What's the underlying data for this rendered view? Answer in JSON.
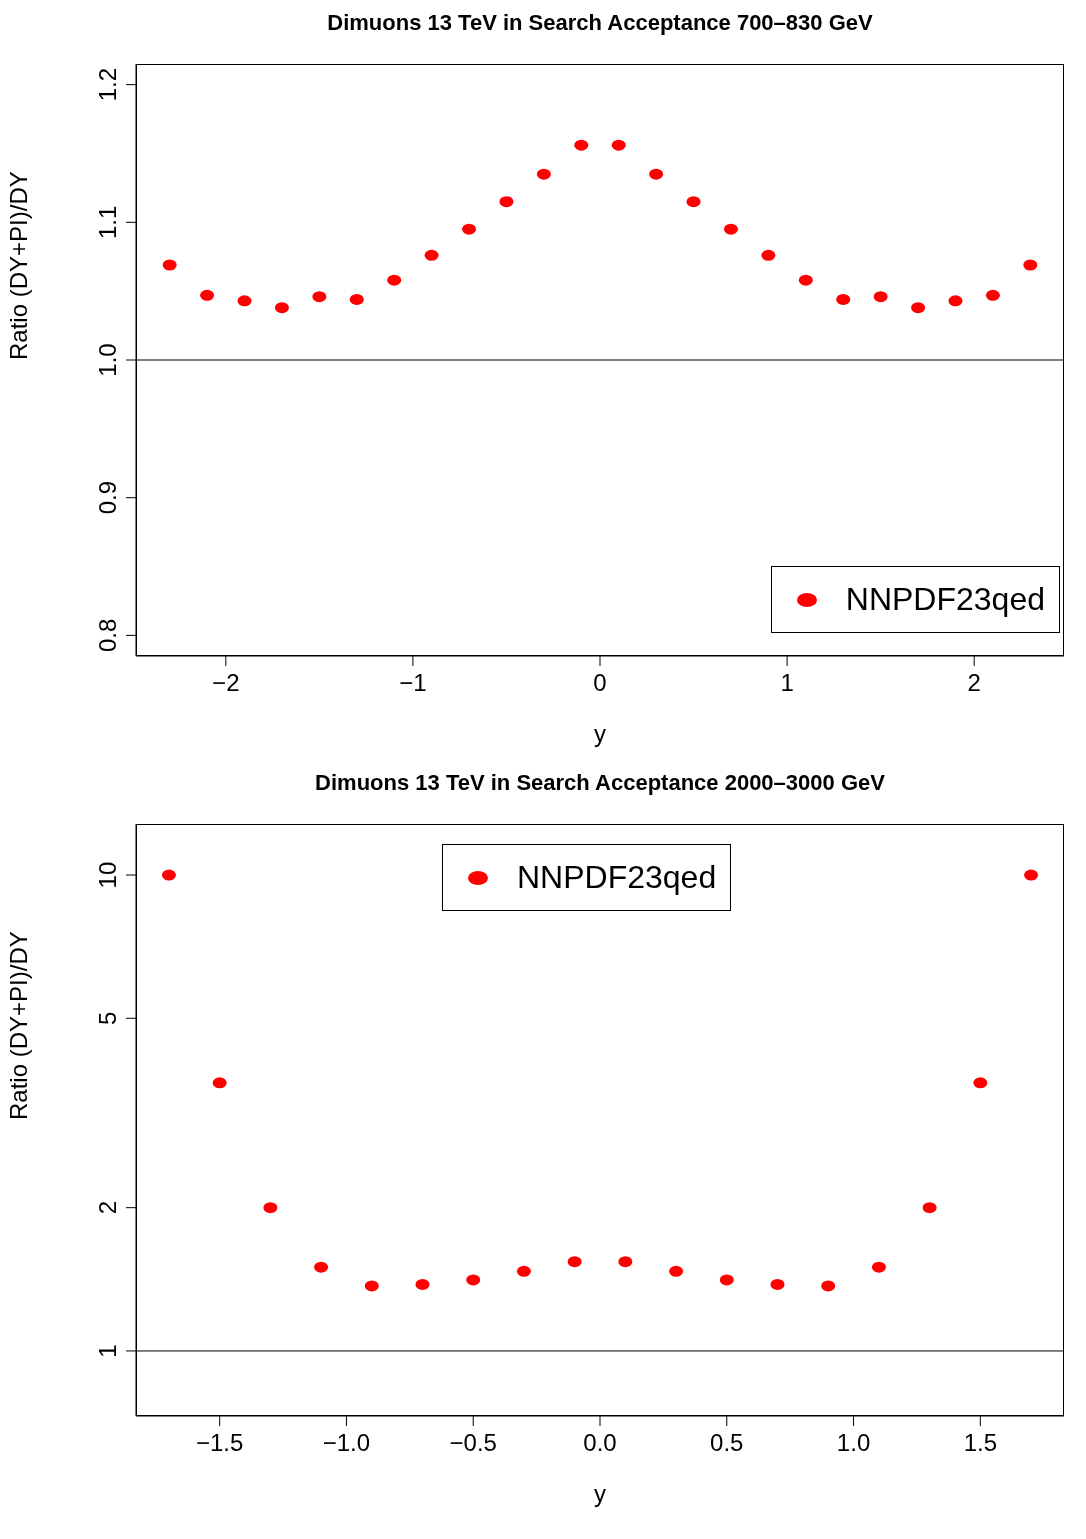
{
  "chart_data": [
    {
      "type": "scatter",
      "title": "Dimuons 13 TeV in Search Acceptance 700–830 GeV",
      "xlabel": "y",
      "ylabel": "Ratio (DY+PI)/DY",
      "x": [
        -2.3,
        -2.1,
        -1.9,
        -1.7,
        -1.5,
        -1.3,
        -1.1,
        -0.9,
        -0.7,
        -0.5,
        -0.3,
        -0.1,
        0.1,
        0.3,
        0.5,
        0.7,
        0.9,
        1.1,
        1.3,
        1.5,
        1.7,
        1.9,
        2.1,
        2.3
      ],
      "series": [
        {
          "name": "NNPDF23qed",
          "color": "#ff0000",
          "values": [
            1.069,
            1.047,
            1.043,
            1.038,
            1.046,
            1.044,
            1.058,
            1.076,
            1.095,
            1.115,
            1.135,
            1.156,
            1.156,
            1.135,
            1.115,
            1.095,
            1.076,
            1.058,
            1.044,
            1.046,
            1.038,
            1.043,
            1.047,
            1.069
          ]
        }
      ],
      "xlim": [
        -2.48,
        2.48
      ],
      "xticks": [
        -2,
        -1,
        0,
        1,
        2
      ],
      "ylim": [
        0.785,
        1.215
      ],
      "yticks": [
        {
          "value": 0.8,
          "label": "0.8"
        },
        {
          "value": 0.9,
          "label": "0.9"
        },
        {
          "value": 1,
          "label": "1.0"
        },
        {
          "value": 1.1,
          "label": "1.1"
        },
        {
          "value": 1.2,
          "label": "1.2"
        }
      ],
      "ref_lines": [
        {
          "axis": "y",
          "value": 1,
          "color": "#000000"
        }
      ],
      "marker": "circle",
      "legend": "bottom right",
      "grid": false
    },
    {
      "type": "scatter",
      "title": "Dimuons 13 TeV in Search Acceptance 2000–3000 GeV",
      "xlabel": "y",
      "ylabel": "Ratio (DY+PI)/DY",
      "x": [
        -1.7,
        -1.5,
        -1.3,
        -1.1,
        -0.9,
        -0.7,
        -0.5,
        -0.3,
        -0.1,
        0.1,
        0.3,
        0.5,
        0.7,
        0.9,
        1.1,
        1.3,
        1.5,
        1.7
      ],
      "series": [
        {
          "name": "NNPDF23qed",
          "color": "#ff0000",
          "values": [
            10,
            3.66,
            2,
            1.5,
            1.37,
            1.38,
            1.41,
            1.47,
            1.54,
            1.54,
            1.47,
            1.41,
            1.38,
            1.37,
            1.5,
            2,
            3.66,
            10
          ]
        }
      ],
      "xlim": [
        -1.83,
        1.83
      ],
      "xticks": [
        {
          "value": -1.5,
          "label": "−1.5"
        },
        {
          "value": -1,
          "label": "−1.0"
        },
        {
          "value": -0.5,
          "label": "−0.5"
        },
        {
          "value": 0,
          "label": "0.0"
        },
        {
          "value": 0.5,
          "label": "0.5"
        },
        {
          "value": 1,
          "label": "1.0"
        },
        {
          "value": 1.5,
          "label": "1.5"
        }
      ],
      "ylim": [
        0.73,
        12.8
      ],
      "yticks": [
        1,
        2,
        5,
        10
      ],
      "log": "y",
      "ref_lines": [
        {
          "axis": "y",
          "value": 1,
          "color": "#000000"
        }
      ],
      "marker": "circle",
      "legend": "top",
      "grid": false
    }
  ]
}
